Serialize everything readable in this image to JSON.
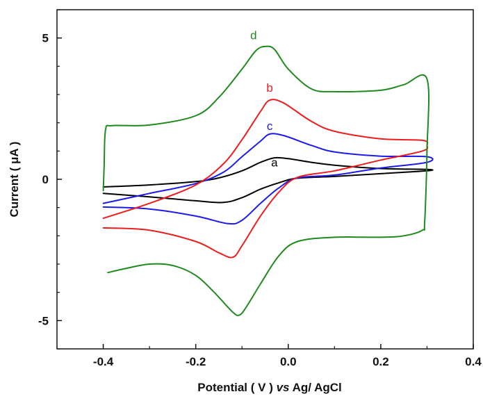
{
  "chart_data": {
    "type": "line",
    "title": "",
    "xlabel_parts": [
      "Potential ( V ) ",
      "vs",
      " Ag/ AgCl"
    ],
    "ylabel_parts": [
      "Current ( ",
      "μ",
      "A )"
    ],
    "xlim": [
      -0.5,
      0.4
    ],
    "ylim": [
      -6,
      6
    ],
    "x_ticks": [
      -0.4,
      -0.2,
      0.0,
      0.2,
      0.4
    ],
    "x_tick_labels": [
      "-0.4",
      "-0.2",
      "0.0",
      "0.2",
      "0.4"
    ],
    "y_ticks": [
      -5,
      0,
      5
    ],
    "y_tick_labels": [
      "-5",
      "0",
      "5"
    ],
    "grid": false,
    "series": [
      {
        "name": "a",
        "color": "#000000",
        "label_at": [
          -0.03,
          0.45
        ],
        "points": [
          [
            -0.4,
            -0.27
          ],
          [
            -0.3,
            -0.2
          ],
          [
            -0.2,
            -0.08
          ],
          [
            -0.15,
            0.05
          ],
          [
            -0.1,
            0.3
          ],
          [
            -0.06,
            0.6
          ],
          [
            -0.03,
            0.76
          ],
          [
            0.0,
            0.73
          ],
          [
            0.05,
            0.6
          ],
          [
            0.1,
            0.5
          ],
          [
            0.2,
            0.38
          ],
          [
            0.3,
            0.35
          ],
          [
            0.3,
            0.3
          ],
          [
            0.2,
            0.2
          ],
          [
            0.1,
            0.1
          ],
          [
            0.02,
            0.04
          ],
          [
            -0.02,
            -0.12
          ],
          [
            -0.06,
            -0.35
          ],
          [
            -0.1,
            -0.65
          ],
          [
            -0.14,
            -0.82
          ],
          [
            -0.2,
            -0.76
          ],
          [
            -0.3,
            -0.62
          ],
          [
            -0.4,
            -0.5
          ]
        ]
      },
      {
        "name": "c",
        "color": "#1a1aee",
        "label_at": [
          -0.04,
          1.75
        ],
        "points": [
          [
            -0.4,
            -0.85
          ],
          [
            -0.3,
            -0.5
          ],
          [
            -0.2,
            -0.15
          ],
          [
            -0.14,
            0.25
          ],
          [
            -0.1,
            0.8
          ],
          [
            -0.06,
            1.35
          ],
          [
            -0.04,
            1.6
          ],
          [
            -0.01,
            1.55
          ],
          [
            0.05,
            1.2
          ],
          [
            0.1,
            0.97
          ],
          [
            0.2,
            0.82
          ],
          [
            0.3,
            0.8
          ],
          [
            0.3,
            0.6
          ],
          [
            0.2,
            0.4
          ],
          [
            0.1,
            0.15
          ],
          [
            0.02,
            0.05
          ],
          [
            -0.02,
            -0.3
          ],
          [
            -0.06,
            -0.85
          ],
          [
            -0.1,
            -1.45
          ],
          [
            -0.13,
            -1.57
          ],
          [
            -0.2,
            -1.3
          ],
          [
            -0.3,
            -1.05
          ],
          [
            -0.4,
            -0.98
          ]
        ]
      },
      {
        "name": "b",
        "color": "#ee1c1c",
        "label_at": [
          -0.04,
          3.1
        ],
        "points": [
          [
            -0.4,
            -1.38
          ],
          [
            -0.3,
            -0.85
          ],
          [
            -0.2,
            -0.2
          ],
          [
            -0.14,
            0.55
          ],
          [
            -0.1,
            1.4
          ],
          [
            -0.06,
            2.4
          ],
          [
            -0.04,
            2.8
          ],
          [
            -0.01,
            2.7
          ],
          [
            0.05,
            2.05
          ],
          [
            0.1,
            1.7
          ],
          [
            0.2,
            1.43
          ],
          [
            0.29,
            1.38
          ],
          [
            0.3,
            1.2
          ],
          [
            0.29,
            1.0
          ],
          [
            0.2,
            0.68
          ],
          [
            0.1,
            0.3
          ],
          [
            0.02,
            0.07
          ],
          [
            -0.02,
            -0.45
          ],
          [
            -0.06,
            -1.3
          ],
          [
            -0.1,
            -2.35
          ],
          [
            -0.12,
            -2.76
          ],
          [
            -0.15,
            -2.6
          ],
          [
            -0.2,
            -2.2
          ],
          [
            -0.3,
            -1.8
          ],
          [
            -0.4,
            -1.72
          ]
        ]
      },
      {
        "name": "d",
        "color": "#1e8a1e",
        "label_at": [
          -0.075,
          4.95
        ],
        "points": [
          [
            -0.4,
            -0.4
          ],
          [
            -0.398,
            0.5
          ],
          [
            -0.395,
            1.75
          ],
          [
            -0.38,
            1.9
          ],
          [
            -0.3,
            1.92
          ],
          [
            -0.2,
            2.25
          ],
          [
            -0.15,
            2.9
          ],
          [
            -0.1,
            3.9
          ],
          [
            -0.07,
            4.55
          ],
          [
            -0.05,
            4.7
          ],
          [
            -0.03,
            4.6
          ],
          [
            0.0,
            3.9
          ],
          [
            0.05,
            3.2
          ],
          [
            0.1,
            3.1
          ],
          [
            0.2,
            3.15
          ],
          [
            0.25,
            3.35
          ],
          [
            0.3,
            3.55
          ],
          [
            0.3,
            1.0
          ],
          [
            0.295,
            -1.5
          ],
          [
            0.29,
            -1.8
          ],
          [
            0.25,
            -2.0
          ],
          [
            0.2,
            -2.05
          ],
          [
            0.1,
            -2.05
          ],
          [
            0.02,
            -2.2
          ],
          [
            -0.02,
            -2.7
          ],
          [
            -0.06,
            -3.7
          ],
          [
            -0.09,
            -4.5
          ],
          [
            -0.105,
            -4.8
          ],
          [
            -0.12,
            -4.7
          ],
          [
            -0.16,
            -4.0
          ],
          [
            -0.2,
            -3.4
          ],
          [
            -0.25,
            -3.05
          ],
          [
            -0.3,
            -3.0
          ],
          [
            -0.35,
            -3.15
          ],
          [
            -0.39,
            -3.3
          ]
        ]
      }
    ]
  }
}
